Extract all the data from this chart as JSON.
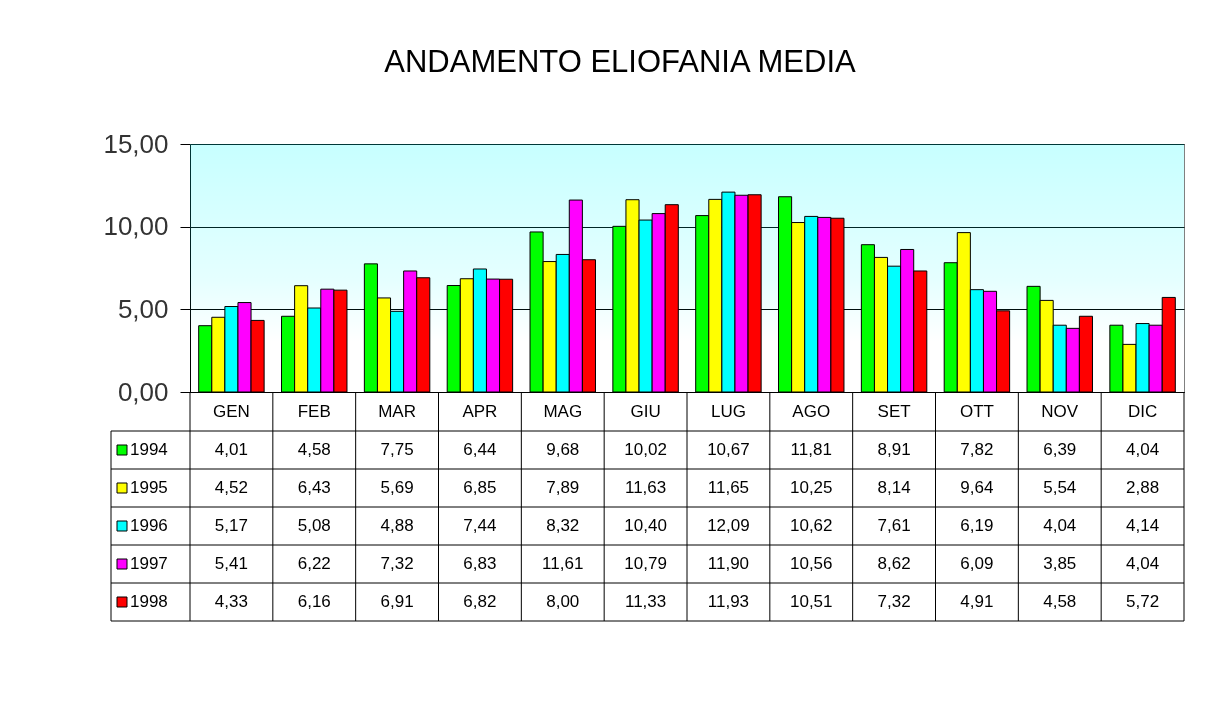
{
  "chart_data": {
    "type": "bar",
    "title": "ANDAMENTO ELIOFANIA MEDIA",
    "categories": [
      "GEN",
      "FEB",
      "MAR",
      "APR",
      "MAG",
      "GIU",
      "LUG",
      "AGO",
      "SET",
      "OTT",
      "NOV",
      "DIC"
    ],
    "series": [
      {
        "name": "1994",
        "color": "#00ff00",
        "values": [
          4.01,
          4.58,
          7.75,
          6.44,
          9.68,
          10.02,
          10.67,
          11.81,
          8.91,
          7.82,
          6.39,
          4.04
        ],
        "value_labels": [
          "4,01",
          "4,58",
          "7,75",
          "6,44",
          "9,68",
          "10,02",
          "10,67",
          "11,81",
          "8,91",
          "7,82",
          "6,39",
          "4,04"
        ]
      },
      {
        "name": "1995",
        "color": "#ffff00",
        "values": [
          4.52,
          6.43,
          5.69,
          6.85,
          7.89,
          11.63,
          11.65,
          10.25,
          8.14,
          9.64,
          5.54,
          2.88
        ],
        "value_labels": [
          "4,52",
          "6,43",
          "5,69",
          "6,85",
          "7,89",
          "11,63",
          "11,65",
          "10,25",
          "8,14",
          "9,64",
          "5,54",
          "2,88"
        ]
      },
      {
        "name": "1996",
        "color": "#00ffff",
        "values": [
          5.17,
          5.08,
          4.88,
          7.44,
          8.32,
          10.4,
          12.09,
          10.62,
          7.61,
          6.19,
          4.04,
          4.14
        ],
        "value_labels": [
          "5,17",
          "5,08",
          "4,88",
          "7,44",
          "8,32",
          "10,40",
          "12,09",
          "10,62",
          "7,61",
          "6,19",
          "4,04",
          "4,14"
        ]
      },
      {
        "name": "1997",
        "color": "#ff00ff",
        "values": [
          5.41,
          6.22,
          7.32,
          6.83,
          11.61,
          10.79,
          11.9,
          10.56,
          8.62,
          6.09,
          3.85,
          4.04
        ],
        "value_labels": [
          "5,41",
          "6,22",
          "7,32",
          "6,83",
          "11,61",
          "10,79",
          "11,90",
          "10,56",
          "8,62",
          "6,09",
          "3,85",
          "4,04"
        ]
      },
      {
        "name": "1998",
        "color": "#ff0000",
        "values": [
          4.33,
          6.16,
          6.91,
          6.82,
          8.0,
          11.33,
          11.93,
          10.51,
          7.32,
          4.91,
          4.58,
          5.72
        ],
        "value_labels": [
          "4,33",
          "6,16",
          "6,91",
          "6,82",
          "8,00",
          "11,33",
          "11,93",
          "10,51",
          "7,32",
          "4,91",
          "4,58",
          "5,72"
        ]
      }
    ],
    "ylim": [
      0,
      15
    ],
    "yticks": [
      {
        "value": 0,
        "label": "0,00"
      },
      {
        "value": 5,
        "label": "5,00"
      },
      {
        "value": 10,
        "label": "10,00"
      },
      {
        "value": 15,
        "label": "15,00"
      }
    ],
    "grid": "y",
    "legend": "bottom left"
  }
}
